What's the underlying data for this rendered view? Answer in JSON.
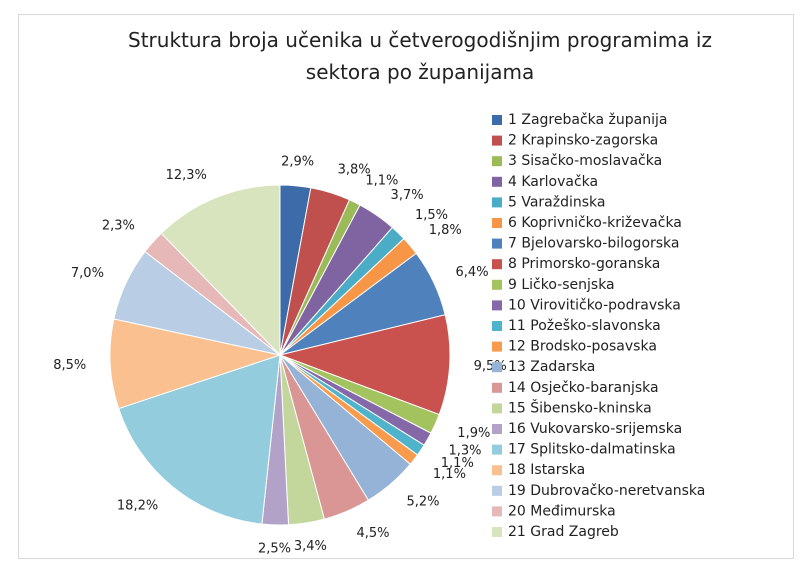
{
  "chart_data": {
    "type": "pie",
    "title": "Struktura broja učenika u četverogodišnjim programima iz sektora po županijama",
    "categories": [
      "1 Zagrebačka županija",
      "2 Krapinsko-zagorska",
      "3 Sisačko-moslavačka",
      "4 Karlovačka",
      "5 Varaždinska",
      "6 Koprivničko-križevačka",
      "7 Bjelovarsko-bilogorska",
      "8 Primorsko-goranska",
      "9 Ličko-senjska",
      "10 Virovitičko-podravska",
      "11 Požeško-slavonska",
      "12 Brodsko-posavska",
      "13 Zadarska",
      "14 Osječko-baranjska",
      "15 Šibensko-kninska",
      "16 Vukovarsko-srijemska",
      "17 Splitsko-dalmatinska",
      "18 Istarska",
      "19 Dubrovačko-neretvanska",
      "20 Međimurska",
      "21 Grad Zagreb"
    ],
    "values": [
      2.9,
      3.8,
      1.1,
      3.7,
      1.5,
      1.8,
      6.4,
      9.5,
      1.9,
      1.3,
      1.1,
      1.1,
      5.2,
      4.5,
      3.4,
      2.5,
      18.2,
      8.5,
      7.0,
      2.3,
      12.3
    ],
    "value_labels": [
      "2,9%",
      "3,8%",
      "1,1%",
      "3,7%",
      "1,5%",
      "1,8%",
      "6,4%",
      "9,5%",
      "1,9%",
      "1,3%",
      "1,1%",
      "1,1%",
      "5,2%",
      "4,5%",
      "3,4%",
      "2,5%",
      "18,2%",
      "8,5%",
      "7,0%",
      "2,3%",
      "12,3%"
    ],
    "colors": [
      "#3d6aa8",
      "#c0504d",
      "#9bbb59",
      "#8064a2",
      "#4bacc6",
      "#f79646",
      "#4f81bd",
      "#c9524e",
      "#a3c35f",
      "#8568a8",
      "#4fb3cc",
      "#f99b4c",
      "#95b3d7",
      "#d99694",
      "#c3d69b",
      "#b2a2c7",
      "#93cddd",
      "#fac08f",
      "#b9cde5",
      "#e6b9b8",
      "#d7e4bd"
    ],
    "legend": "right"
  }
}
